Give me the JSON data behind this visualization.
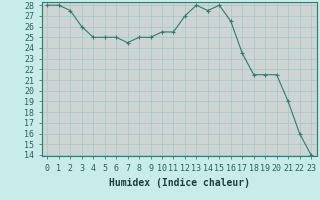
{
  "x": [
    0,
    1,
    2,
    3,
    4,
    5,
    6,
    7,
    8,
    9,
    10,
    11,
    12,
    13,
    14,
    15,
    16,
    17,
    18,
    19,
    20,
    21,
    22,
    23
  ],
  "y": [
    28,
    28,
    27.5,
    26,
    25,
    25,
    25,
    24.5,
    25,
    25,
    25.5,
    25.5,
    27,
    28,
    27.5,
    28,
    26.5,
    23.5,
    21.5,
    21.5,
    21.5,
    19,
    16,
    14
  ],
  "line_color": "#2e7d6e",
  "marker": "+",
  "bg_color": "#c8ecea",
  "grid_major_color": "#a0c8c4",
  "grid_minor_color": "#d4b8b8",
  "xlabel": "Humidex (Indice chaleur)",
  "ylim": [
    14,
    28
  ],
  "xlim": [
    -0.5,
    23.5
  ],
  "yticks": [
    14,
    15,
    16,
    17,
    18,
    19,
    20,
    21,
    22,
    23,
    24,
    25,
    26,
    27,
    28
  ],
  "xticks": [
    0,
    1,
    2,
    3,
    4,
    5,
    6,
    7,
    8,
    9,
    10,
    11,
    12,
    13,
    14,
    15,
    16,
    17,
    18,
    19,
    20,
    21,
    22,
    23
  ],
  "xtick_labels": [
    "0",
    "1",
    "2",
    "3",
    "4",
    "5",
    "6",
    "7",
    "8",
    "9",
    "10",
    "11",
    "12",
    "13",
    "14",
    "15",
    "16",
    "17",
    "18",
    "19",
    "20",
    "21",
    "22",
    "23"
  ],
  "font_size": 6,
  "label_font_size": 7,
  "spine_color": "#2e7d6e"
}
